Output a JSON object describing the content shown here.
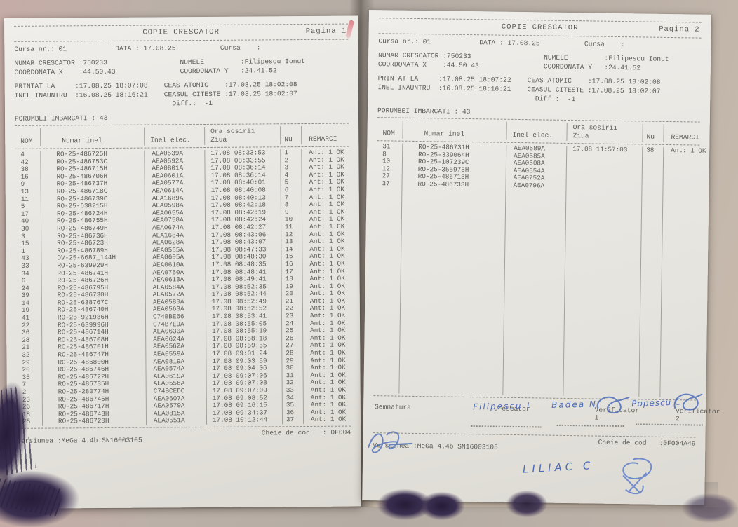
{
  "pages": [
    {
      "title": "COPIE CRESCATOR",
      "page_label": "Pagina 1",
      "header_lines": [
        "Cursa nr.: 01            DATA : 17.08.25           Cursa    :",
        "",
        "NUMAR CRESCATOR :750233                  NUMELE         :Filipescu Ionut",
        "COORDONATA X    :44.50.43                COORDONATA Y   :24.41.52",
        "",
        "PRINTAT LA     :17.08.25 18:07:08    CEAS ATOMIC    :17.08.25 18:02:08",
        "INEL INAUNTRU  :16.08.25 18:16:21    CEASUL CITESTE :17.08.25 18:02:07",
        "                                       Diff.:  -1",
        "",
        "PORUMBEI IMBARCATI : 43"
      ],
      "table": {
        "headers": {
          "nom": "NOM",
          "inel": "Numar inel",
          "elec": "Inel elec.",
          "ora1": "Ora sosirii",
          "ora2": "Ziua",
          "nu": "Nu",
          "remarci": "REMARCI"
        },
        "rows": [
          [
            "4",
            "RO-25-486725H",
            "AEA0539A",
            "17.08 08:33:53",
            "1",
            "Ant: 1 OK"
          ],
          [
            "42",
            "RO-25-486753C",
            "AEA0592A",
            "17.08 08:33:55",
            "2",
            "Ant: 1 OK"
          ],
          [
            "38",
            "RO-25-486715H",
            "AEA0801A",
            "17.08 08:36:14",
            "3",
            "Ant: 1 OK"
          ],
          [
            "16",
            "RO-25-486706H",
            "AEA0601A",
            "17.08 08:36:14",
            "4",
            "Ant: 1 OK"
          ],
          [
            "9",
            "RO-25-486737H",
            "AEA0577A",
            "17.08 08:40:01",
            "5",
            "Ant: 1 OK"
          ],
          [
            "13",
            "RO-25-486718C",
            "AEA0614A",
            "17.08 08:40:08",
            "6",
            "Ant: 1 OK"
          ],
          [
            "11",
            "RO-25-486739C",
            "AEA1689A",
            "17.08 08:40:13",
            "7",
            "Ant: 1 OK"
          ],
          [
            "5",
            "RO-25-638215H",
            "AEA0598A",
            "17.08 08:42:18",
            "8",
            "Ant: 1 OK"
          ],
          [
            "17",
            "RO-25-486724H",
            "AEA0655A",
            "17.08 08:42:19",
            "9",
            "Ant: 1 OK"
          ],
          [
            "40",
            "RO-25-486755H",
            "AEA0758A",
            "17.08 08:42:24",
            "10",
            "Ant: 1 OK"
          ],
          [
            "30",
            "RO-25-486749H",
            "AEA0674A",
            "17.08 08:42:27",
            "11",
            "Ant: 1 OK"
          ],
          [
            "3",
            "RO-25-486736H",
            "AEA1684A",
            "17.08 08:43:06",
            "12",
            "Ant: 1 OK"
          ],
          [
            "15",
            "RO-25-486723H",
            "AEA0628A",
            "17.08 08:43:07",
            "13",
            "Ant: 1 OK"
          ],
          [
            "1",
            "RO-25-486789H",
            "AEA0565A",
            "17.08 08:47:33",
            "14",
            "Ant: 1 OK"
          ],
          [
            "43",
            "DV-25-6687_144H",
            "AEA0605A",
            "17.08 08:48:30",
            "15",
            "Ant: 1 OK"
          ],
          [
            "33",
            "RO-25-639929H",
            "AEA0610A",
            "17.08 08:48:35",
            "16",
            "Ant: 1 OK"
          ],
          [
            "34",
            "RO-25-486741H",
            "AEA0750A",
            "17.08 08:48:41",
            "17",
            "Ant: 1 OK"
          ],
          [
            "6",
            "RO-25-486726H",
            "AEA0613A",
            "17.08 08:49:41",
            "18",
            "Ant: 1 OK"
          ],
          [
            "24",
            "RO-25-486795H",
            "AEA0584A",
            "17.08 08:52:35",
            "19",
            "Ant: 1 OK"
          ],
          [
            "39",
            "RO-25-486730H",
            "AEA0572A",
            "17.08 08:52:44",
            "20",
            "Ant: 1 OK"
          ],
          [
            "14",
            "RO-25-638767C",
            "AEA0580A",
            "17.08 08:52:49",
            "21",
            "Ant: 1 OK"
          ],
          [
            "19",
            "RO-25-486740H",
            "AEA0563A",
            "17.08 08:52:52",
            "22",
            "Ant: 1 OK"
          ],
          [
            "41",
            "RO-25-921936H",
            "C74BBE66",
            "17.08 08:53:41",
            "23",
            "Ant: 1 OK"
          ],
          [
            "22",
            "RO-25-639996H",
            "C74B7E9A",
            "17.08 08:55:05",
            "24",
            "Ant: 1 OK"
          ],
          [
            "36",
            "RO-25-486714H",
            "AEA0630A",
            "17.08 08:55:19",
            "25",
            "Ant: 1 OK"
          ],
          [
            "28",
            "RO-25-486708H",
            "AEA0624A",
            "17.08 08:58:18",
            "26",
            "Ant: 1 OK"
          ],
          [
            "21",
            "RO-25-486701H",
            "AEA0562A",
            "17.08 08:59:55",
            "27",
            "Ant: 1 OK"
          ],
          [
            "32",
            "RO-25-486747H",
            "AEA0559A",
            "17.08 09:01:24",
            "28",
            "Ant: 1 OK"
          ],
          [
            "29",
            "RO-25-486800H",
            "AEA0819A",
            "17.08 09:03:59",
            "29",
            "Ant: 1 OK"
          ],
          [
            "20",
            "RO-25-486746H",
            "AEA0574A",
            "17.08 09:04:06",
            "30",
            "Ant: 1 OK"
          ],
          [
            "35",
            "RO-25-486722H",
            "AEA0619A",
            "17.08 09:07:06",
            "31",
            "Ant: 1 OK"
          ],
          [
            "7",
            "RO-25-486735H",
            "AEA0556A",
            "17.08 09:07:08",
            "32",
            "Ant: 1 OK"
          ],
          [
            "2",
            "RO-25-280774H",
            "C74BCEDC",
            "17.08 09:07:09",
            "33",
            "Ant: 1 OK"
          ],
          [
            "23",
            "RO-25-486745H",
            "AEA0607A",
            "17.08 09:08:52",
            "34",
            "Ant: 1 OK"
          ],
          [
            "26",
            "RO-25-486717H",
            "AEA0579A",
            "17.08 09:16:15",
            "35",
            "Ant: 1 OK"
          ],
          [
            "18",
            "RO-25-486748H",
            "AEA0815A",
            "17.08 09:34:37",
            "36",
            "Ant: 1 OK"
          ],
          [
            "25",
            "RO-25-486720H",
            "AEA0551A",
            "17.08 10:12:44",
            "37",
            "Ant: 1 OK"
          ]
        ]
      },
      "footer": {
        "versiunea": "Versiunea :MeGa 4.4b SN16003105",
        "cheie_label": "Cheie de cod",
        "cheie_value": ": 0F004"
      }
    },
    {
      "title": "COPIE CRESCATOR",
      "page_label": "Pagina 2",
      "header_lines": [
        "Cursa nr.: 01            DATA : 17.08.25           Cursa    :",
        "",
        "NUMAR CRESCATOR :750233                  NUMELE         :Filipescu Ionut",
        "COORDONATA X    :44.50.43                COORDONATA Y   :24.41.52",
        "",
        "PRINTAT LA     :17.08.25 18:07:22    CEAS ATOMIC    :17.08.25 18:02:08",
        "INEL INAUNTRU  :16.08.25 18:16:21    CEASUL CITESTE :17.08.25 18:02:07",
        "                                       Diff.:  -1",
        "",
        "PORUMBEI IMBARCATI : 43"
      ],
      "table": {
        "headers": {
          "nom": "NOM",
          "inel": "Numar inel",
          "elec": "Inel elec.",
          "ora1": "Ora sosirii",
          "ora2": "Ziua",
          "nu": "Nu",
          "remarci": "REMARCI"
        },
        "rows": [
          [
            "31",
            "RO-25-486731H",
            "AEA0589A",
            "17.08 11:57:03",
            "38",
            "Ant: 1 OK"
          ],
          [
            "8",
            "RO-25-339064H",
            "AEA0585A",
            "",
            "",
            ""
          ],
          [
            "10",
            "RO-25-107239C",
            "AEA0608A",
            "",
            "",
            ""
          ],
          [
            "12",
            "RO-25-355975H",
            "AEA0554A",
            "",
            "",
            ""
          ],
          [
            "27",
            "RO-25-486713H",
            "AEA0752A",
            "",
            "",
            ""
          ],
          [
            "37",
            "RO-25-486733H",
            "AEA0796A",
            "",
            "",
            ""
          ]
        ]
      },
      "signatures": {
        "semnatura": "Semnatura",
        "crescator": "Crescator",
        "verificator1": "Verificator 1",
        "verificator2": "Verificator 2",
        "handwritten": {
          "crescator_sign": "Filipescu !",
          "verificator1_sign": "Badea N.",
          "verificator2_sign": "Popescu C",
          "liliac_note": "LILIAC C"
        }
      },
      "footer": {
        "versiunea": "Versiunea :MeGa 4.4b SN16003105",
        "cheie_label": "Cheie de cod",
        "cheie_value": ":0F004A49"
      }
    }
  ]
}
